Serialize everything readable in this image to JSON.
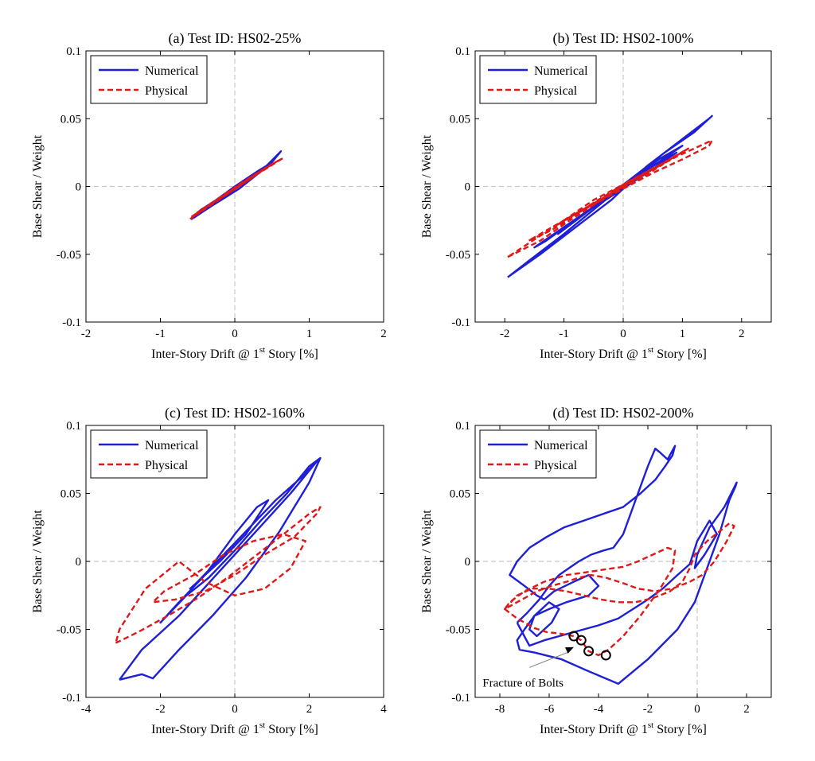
{
  "colors": {
    "numerical": "#1f1fd6",
    "physical": "#e01818",
    "zero_line": "#c8c8c8",
    "axes": "#000000"
  },
  "chart_data": [
    {
      "id": "a",
      "type": "line",
      "title": "(a) Test ID: HS02-25%",
      "xlabel": "Inter-Story Drift @ 1",
      "xlabel_sup": "st",
      "xlabel_tail": " Story [%]",
      "ylabel": "Base Shear / Weight",
      "xlim": [
        -2,
        2
      ],
      "ylim": [
        -0.1,
        0.1
      ],
      "xticks": [
        -2,
        -1,
        0,
        1,
        2
      ],
      "xtick_labels": [
        "-2",
        "-1",
        "0",
        "1",
        "2"
      ],
      "yticks": [
        -0.1,
        -0.05,
        0,
        0.05,
        0.1
      ],
      "ytick_labels": [
        "-0.1",
        "-0.05",
        "0",
        "0.05",
        "0.1"
      ],
      "legend": {
        "position": "top-left",
        "entries": [
          "Numerical",
          "Physical"
        ]
      },
      "series": [
        {
          "name": "Numerical",
          "style": "solid",
          "x": [
            -0.55,
            -0.3,
            0.05,
            0.35,
            0.62,
            0.5,
            0.2,
            -0.1,
            -0.4,
            -0.58,
            -0.45,
            -0.1,
            0.2,
            0.45,
            0.3,
            0.0,
            -0.3,
            -0.5
          ],
          "y": [
            -0.023,
            -0.014,
            -0.002,
            0.011,
            0.026,
            0.018,
            0.006,
            -0.006,
            -0.017,
            -0.024,
            -0.017,
            -0.005,
            0.006,
            0.016,
            0.011,
            0.0,
            -0.012,
            -0.021
          ]
        },
        {
          "name": "Physical",
          "style": "dashed",
          "x": [
            -0.6,
            -0.35,
            0.0,
            0.3,
            0.65,
            0.45,
            0.1,
            -0.2,
            -0.5,
            -0.55,
            -0.3,
            0.05,
            0.35,
            0.55,
            0.25,
            -0.05,
            -0.35,
            -0.6
          ],
          "y": [
            -0.024,
            -0.014,
            -0.002,
            0.009,
            0.021,
            0.015,
            0.003,
            -0.008,
            -0.019,
            -0.022,
            -0.013,
            0.0,
            0.011,
            0.018,
            0.008,
            -0.003,
            -0.014,
            -0.023
          ]
        }
      ]
    },
    {
      "id": "b",
      "type": "line",
      "title": "(b) Test ID: HS02-100%",
      "xlabel": "Inter-Story Drift @ 1",
      "xlabel_sup": "st",
      "xlabel_tail": " Story [%]",
      "ylabel": "Base Shear / Weight",
      "xlim": [
        -2.5,
        2.5
      ],
      "ylim": [
        -0.1,
        0.1
      ],
      "xticks": [
        -2,
        -1,
        0,
        1,
        2
      ],
      "xtick_labels": [
        "-2",
        "-1",
        "0",
        "1",
        "2"
      ],
      "yticks": [
        -0.1,
        -0.05,
        0,
        0.05,
        0.1
      ],
      "ytick_labels": [
        "-0.1",
        "-0.05",
        "0",
        "0.05",
        "0.1"
      ],
      "legend": {
        "position": "top-left",
        "entries": [
          "Numerical",
          "Physical"
        ]
      },
      "series": [
        {
          "name": "Numerical",
          "style": "solid",
          "x": [
            -1.95,
            -1.4,
            -0.8,
            -0.2,
            0.4,
            1.0,
            1.45,
            1.5,
            1.2,
            0.7,
            0.2,
            -0.4,
            -1.0,
            -1.5,
            -1.3,
            -0.6,
            0.0,
            0.6,
            1.0,
            0.5,
            -0.2,
            -0.9,
            -1.1,
            -0.4,
            0.3,
            0.9,
            0.4,
            -0.3,
            -1.0,
            -1.6,
            -1.95
          ],
          "y": [
            -0.067,
            -0.05,
            -0.03,
            -0.01,
            0.015,
            0.035,
            0.05,
            0.052,
            0.04,
            0.025,
            0.008,
            -0.012,
            -0.03,
            -0.045,
            -0.04,
            -0.018,
            0.0,
            0.02,
            0.03,
            0.015,
            -0.005,
            -0.028,
            -0.035,
            -0.012,
            0.01,
            0.025,
            0.01,
            -0.01,
            -0.035,
            -0.055,
            -0.067
          ]
        },
        {
          "name": "Physical",
          "style": "dashed",
          "x": [
            -1.95,
            -1.4,
            -0.9,
            -0.3,
            0.3,
            0.9,
            1.5,
            1.45,
            1.0,
            0.5,
            -0.1,
            -0.7,
            -1.2,
            -1.6,
            -1.2,
            -0.5,
            0.1,
            0.7,
            1.1,
            0.6,
            0.0,
            -0.6,
            -1.1,
            -0.5,
            0.2,
            0.8,
            0.3,
            -0.4,
            -1.0,
            -1.6,
            -1.95
          ],
          "y": [
            -0.052,
            -0.04,
            -0.025,
            -0.008,
            0.008,
            0.022,
            0.034,
            0.03,
            0.02,
            0.01,
            -0.004,
            -0.018,
            -0.03,
            -0.04,
            -0.032,
            -0.012,
            0.004,
            0.018,
            0.028,
            0.015,
            0.0,
            -0.015,
            -0.028,
            -0.01,
            0.006,
            0.02,
            0.006,
            -0.01,
            -0.025,
            -0.042,
            -0.052
          ]
        }
      ]
    },
    {
      "id": "c",
      "type": "line",
      "title": "(c) Test ID: HS02-160%",
      "xlabel": "Inter-Story Drift @ 1",
      "xlabel_sup": "st",
      "xlabel_tail": " Story [%]",
      "ylabel": "Base Shear / Weight",
      "xlim": [
        -4,
        4
      ],
      "ylim": [
        -0.1,
        0.1
      ],
      "xticks": [
        -4,
        -2,
        0,
        2,
        4
      ],
      "xtick_labels": [
        "-4",
        "-2",
        "0",
        "2",
        "4"
      ],
      "yticks": [
        -0.1,
        -0.05,
        0,
        0.05,
        0.1
      ],
      "ytick_labels": [
        "-0.1",
        "-0.05",
        "0",
        "0.05",
        "0.1"
      ],
      "legend": {
        "position": "top-left",
        "entries": [
          "Numerical",
          "Physical"
        ]
      },
      "series": [
        {
          "name": "Numerical",
          "style": "solid",
          "x": [
            -3.1,
            -2.5,
            -2.2,
            -1.5,
            -0.6,
            0.3,
            1.2,
            2.0,
            2.3,
            2.0,
            1.4,
            0.7,
            0.0,
            -0.7,
            -1.3,
            -2.0,
            -1.5,
            -0.8,
            0.0,
            0.6,
            0.9,
            0.3,
            -0.4,
            -1.2,
            -1.0,
            -0.3,
            0.4,
            1.1,
            1.8,
            2.25,
            1.5,
            0.5,
            -0.5,
            -1.5,
            -2.5,
            -3.1
          ],
          "y": [
            -0.087,
            -0.083,
            -0.086,
            -0.065,
            -0.04,
            -0.012,
            0.022,
            0.058,
            0.076,
            0.07,
            0.05,
            0.03,
            0.008,
            -0.012,
            -0.025,
            -0.045,
            -0.03,
            -0.01,
            0.02,
            0.04,
            0.045,
            0.02,
            0.0,
            -0.02,
            -0.015,
            0.005,
            0.025,
            0.045,
            0.062,
            0.075,
            0.05,
            0.02,
            -0.01,
            -0.04,
            -0.065,
            -0.087
          ]
        },
        {
          "name": "Physical",
          "style": "dashed",
          "x": [
            -3.2,
            -2.6,
            -1.8,
            -1.0,
            -0.2,
            0.6,
            1.4,
            2.0,
            2.3,
            2.2,
            1.6,
            0.8,
            0.0,
            -0.8,
            -1.6,
            -2.2,
            -1.9,
            -1.1,
            -0.3,
            0.5,
            1.3,
            1.9,
            1.5,
            0.8,
            0.0,
            -0.8,
            -1.5,
            -2.4,
            -3.1,
            -3.2
          ],
          "y": [
            -0.06,
            -0.052,
            -0.04,
            -0.027,
            -0.012,
            0.005,
            0.022,
            0.035,
            0.04,
            0.035,
            0.018,
            0.005,
            -0.01,
            -0.022,
            -0.028,
            -0.03,
            -0.022,
            -0.01,
            0.005,
            0.015,
            0.02,
            0.015,
            -0.005,
            -0.02,
            -0.025,
            -0.015,
            0.0,
            -0.02,
            -0.05,
            -0.06
          ]
        }
      ]
    },
    {
      "id": "d",
      "type": "line",
      "title": "(d) Test ID: HS02-200%",
      "xlabel": "Inter-Story Drift @ 1",
      "xlabel_sup": "st",
      "xlabel_tail": " Story [%]",
      "ylabel": "Base Shear / Weight",
      "xlim": [
        -9,
        3
      ],
      "ylim": [
        -0.1,
        0.1
      ],
      "xticks": [
        -8,
        -6,
        -4,
        -2,
        0,
        2
      ],
      "xtick_labels": [
        "-8",
        "-6",
        "-4",
        "-2",
        "0",
        "2"
      ],
      "yticks": [
        -0.1,
        -0.05,
        0,
        0.05,
        0.1
      ],
      "ytick_labels": [
        "-0.1",
        "-0.05",
        "0",
        "0.05",
        "0.1"
      ],
      "legend": {
        "position": "top-left",
        "entries": [
          "Numerical",
          "Physical"
        ]
      },
      "annotation": {
        "text": "Fracture of Bolts",
        "arrow_from": [
          -6.8,
          -0.078
        ],
        "arrow_to": [
          -5.0,
          -0.063
        ]
      },
      "markers": {
        "x": [
          -5.0,
          -4.7,
          -4.4,
          -3.7
        ],
        "y": [
          -0.055,
          -0.058,
          -0.066,
          -0.069
        ]
      },
      "series": [
        {
          "name": "Numerical",
          "style": "solid",
          "x": [
            -7.3,
            -6.9,
            -6.4,
            -6.0,
            -5.6,
            -5.2,
            -4.8,
            -4.3,
            -3.8,
            -3.4,
            -3.0,
            -2.5,
            -2.0,
            -1.7,
            -1.5,
            -1.2,
            -0.9,
            -1.0,
            -1.3,
            -1.7,
            -2.3,
            -3.0,
            -3.8,
            -4.6,
            -5.4,
            -6.1,
            -6.8,
            -7.3,
            -7.6,
            -7.0,
            -6.5,
            -6.2,
            -5.8,
            -5.0,
            -4.4,
            -4.0,
            -4.4,
            -5.3,
            -6.0,
            -6.6,
            -6.8,
            -6.5,
            -5.9,
            -5.6,
            -6.0,
            -6.6,
            -7.0,
            -7.3,
            -7.2,
            -6.6,
            -5.5,
            -4.5,
            -3.2,
            -2.0,
            -0.8,
            -0.1,
            0.4,
            0.9,
            1.3,
            1.55,
            1.6,
            1.1,
            0.5,
            0.0,
            -0.1,
            0.3,
            0.8,
            0.5,
            0.0,
            -0.3,
            -0.8,
            -1.4,
            -2.0,
            -2.6,
            -3.2,
            -4.0,
            -5.2,
            -6.2,
            -6.8,
            -7.3
          ],
          "y": [
            -0.045,
            -0.038,
            -0.028,
            -0.018,
            -0.01,
            -0.005,
            0.0,
            0.005,
            0.008,
            0.01,
            0.02,
            0.045,
            0.07,
            0.083,
            0.08,
            0.075,
            0.085,
            0.078,
            0.07,
            0.06,
            0.05,
            0.04,
            0.035,
            0.03,
            0.025,
            0.018,
            0.01,
            0.0,
            -0.01,
            -0.018,
            -0.025,
            -0.028,
            -0.022,
            -0.015,
            -0.01,
            -0.018,
            -0.025,
            -0.03,
            -0.035,
            -0.04,
            -0.05,
            -0.055,
            -0.045,
            -0.035,
            -0.03,
            -0.04,
            -0.05,
            -0.058,
            -0.065,
            -0.067,
            -0.072,
            -0.08,
            -0.09,
            -0.072,
            -0.05,
            -0.03,
            -0.005,
            0.02,
            0.045,
            0.055,
            0.058,
            0.04,
            0.025,
            0.005,
            -0.005,
            0.005,
            0.02,
            0.03,
            0.015,
            -0.002,
            -0.01,
            -0.02,
            -0.028,
            -0.035,
            -0.042,
            -0.047,
            -0.053,
            -0.058,
            -0.062,
            -0.045
          ]
        },
        {
          "name": "Physical",
          "style": "dashed",
          "x": [
            -7.8,
            -7.3,
            -6.7,
            -6.0,
            -5.3,
            -4.6,
            -3.9,
            -3.2,
            -2.5,
            -1.8,
            -1.1,
            -0.6,
            -0.3,
            -0.1,
            0.4,
            0.9,
            1.3,
            1.5,
            1.2,
            0.7,
            0.2,
            -0.3,
            -1.0,
            -1.7,
            -2.4,
            -3.0,
            -3.7,
            -4.3,
            -4.8,
            -5.3,
            -5.9,
            -6.5,
            -7.1,
            -7.6,
            -7.8,
            -7.3,
            -6.6,
            -6.1,
            -5.6,
            -5.3,
            -5.0,
            -4.7,
            -4.4,
            -4.0,
            -3.6,
            -3.0,
            -2.3,
            -1.5,
            -1.0,
            -0.9,
            -1.2,
            -1.8,
            -2.4,
            -3.0,
            -3.8,
            -4.5,
            -5.3,
            -6.2,
            -7.0,
            -7.6,
            -7.8
          ],
          "y": [
            -0.035,
            -0.025,
            -0.02,
            -0.02,
            -0.022,
            -0.025,
            -0.028,
            -0.03,
            -0.03,
            -0.027,
            -0.022,
            -0.015,
            -0.005,
            0.005,
            0.015,
            0.022,
            0.028,
            0.026,
            0.015,
            0.0,
            -0.01,
            -0.015,
            -0.02,
            -0.022,
            -0.02,
            -0.016,
            -0.012,
            -0.01,
            -0.012,
            -0.015,
            -0.018,
            -0.022,
            -0.028,
            -0.033,
            -0.035,
            -0.042,
            -0.049,
            -0.052,
            -0.053,
            -0.054,
            -0.055,
            -0.058,
            -0.066,
            -0.069,
            -0.065,
            -0.055,
            -0.04,
            -0.02,
            -0.005,
            0.008,
            0.01,
            0.005,
            0.0,
            -0.004,
            -0.006,
            -0.008,
            -0.01,
            -0.015,
            -0.022,
            -0.03,
            -0.035
          ]
        }
      ]
    }
  ]
}
